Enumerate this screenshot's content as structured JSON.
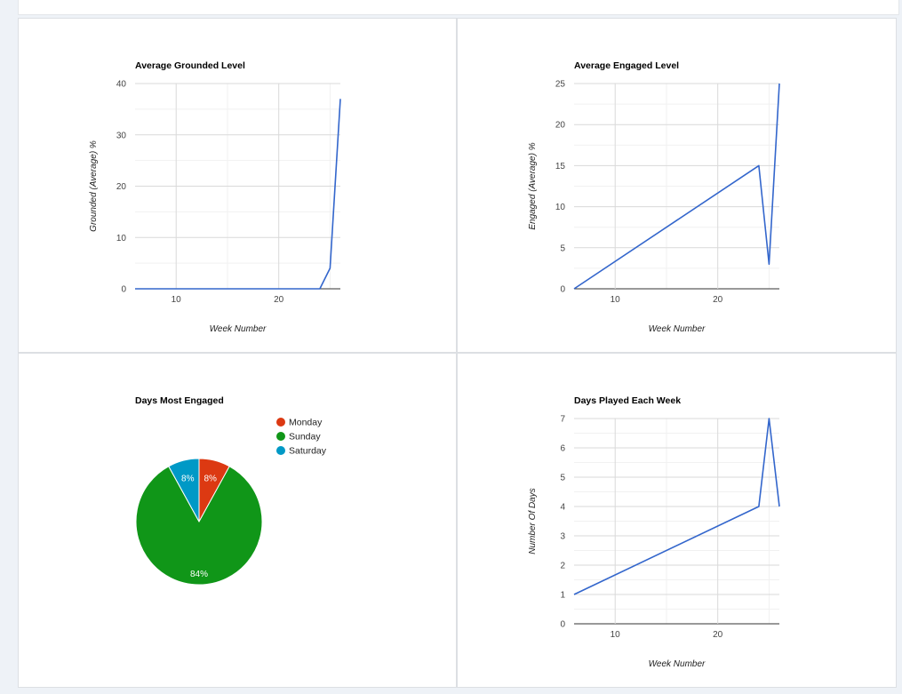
{
  "charts": [
    {
      "type": "line",
      "title": "Average Grounded Level",
      "xlabel": "Week Number",
      "ylabel": "Grounded (Average) %",
      "xlim": [
        6,
        26
      ],
      "ylim": [
        0,
        40
      ],
      "xticks": [
        10,
        20
      ],
      "yticks": [
        0,
        10,
        20,
        30,
        40
      ],
      "color": "#3366cc",
      "series": [
        {
          "x": [
            6,
            24,
            25,
            26
          ],
          "y": [
            0,
            0,
            4,
            37
          ]
        }
      ]
    },
    {
      "type": "line",
      "title": "Average Engaged Level",
      "xlabel": "Week Number",
      "ylabel": "Engaged (Average) %",
      "xlim": [
        6,
        26
      ],
      "ylim": [
        0,
        25
      ],
      "xticks": [
        10,
        20
      ],
      "yticks": [
        0,
        5,
        10,
        15,
        20,
        25
      ],
      "color": "#3366cc",
      "series": [
        {
          "x": [
            6,
            24,
            25,
            26
          ],
          "y": [
            0,
            15,
            3,
            25
          ]
        }
      ]
    },
    {
      "type": "pie",
      "title": "Days Most Engaged",
      "slices": [
        {
          "label": "Monday",
          "value": 8,
          "text": "8%",
          "color": "#dc3912"
        },
        {
          "label": "Sunday",
          "value": 84,
          "text": "84%",
          "color": "#109618"
        },
        {
          "label": "Saturday",
          "value": 8,
          "text": "8%",
          "color": "#0099c6"
        }
      ]
    },
    {
      "type": "line",
      "title": "Days Played Each Week",
      "xlabel": "Week Number",
      "ylabel": "Number Of Days",
      "xlim": [
        6,
        26
      ],
      "ylim": [
        0,
        7
      ],
      "xticks": [
        10,
        20
      ],
      "yticks": [
        0,
        1,
        2,
        3,
        4,
        5,
        6,
        7
      ],
      "color": "#3366cc",
      "series": [
        {
          "x": [
            6,
            24,
            25,
            26
          ],
          "y": [
            1,
            4,
            7,
            4
          ]
        }
      ]
    }
  ]
}
